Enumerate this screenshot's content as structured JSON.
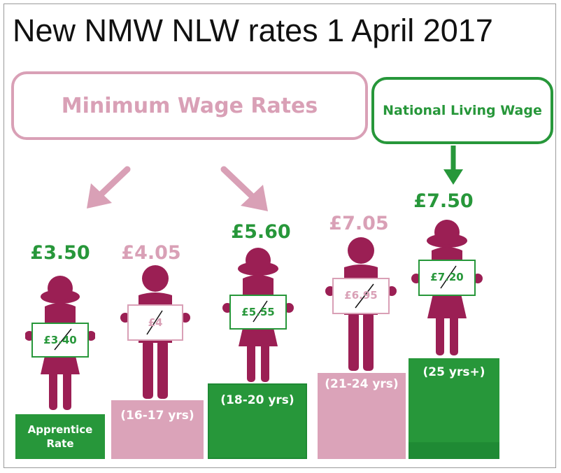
{
  "title": "New NMW NLW rates 1 April 2017",
  "colors": {
    "pink": "#d9a0b6",
    "magenta": "#9b1f54",
    "green": "#27973a",
    "dark_green": "#1f8a34",
    "light_pink": "#e4a9bf"
  },
  "minimum_wage_box": {
    "label": "Minimum Wage Rates"
  },
  "living_wage_box": {
    "label": "National Living Wage"
  },
  "groups": [
    {
      "new_rate": "£3.50",
      "old_rate": "£3.40",
      "group_label_line1": "Apprentice",
      "group_label_line2": "Rate",
      "color": "green"
    },
    {
      "new_rate": "£4.05",
      "old_rate": "£4",
      "group_label": "(16-17 yrs)",
      "color": "pink"
    },
    {
      "new_rate": "£5.60",
      "old_rate": "£5.55",
      "group_label": "(18-20 yrs)",
      "color": "green"
    },
    {
      "new_rate": "£7.05",
      "old_rate": "£6.95",
      "group_label": "(21-24 yrs)",
      "color": "pink"
    },
    {
      "new_rate": "£7.50",
      "old_rate": "£7.20",
      "group_label": "(25 yrs+)",
      "color": "green"
    }
  ]
}
